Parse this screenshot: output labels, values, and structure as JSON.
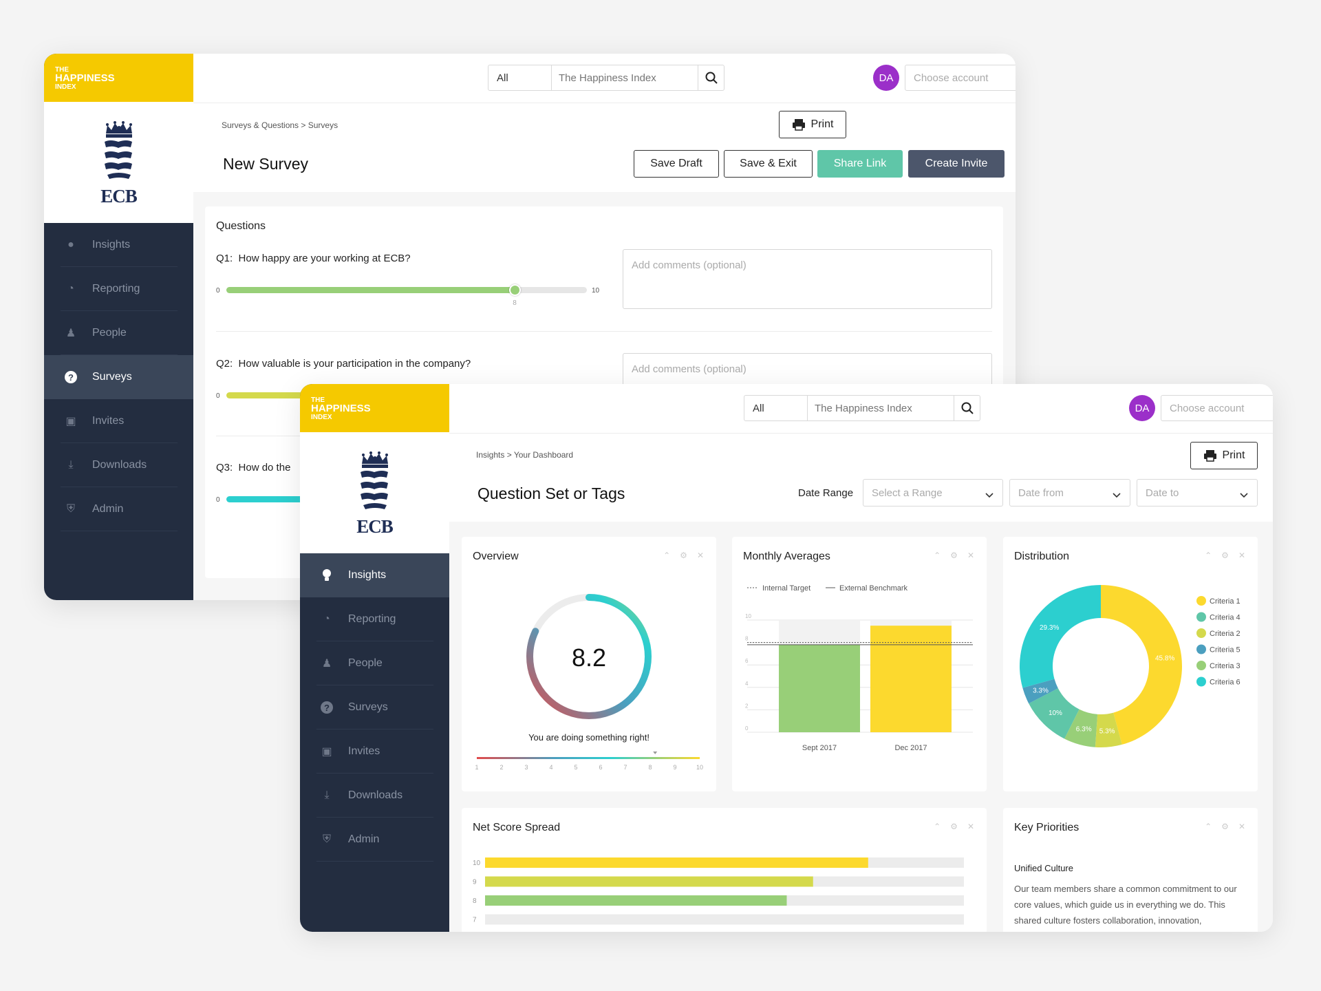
{
  "brand": {
    "line1": "THE",
    "line2": "HAPPINESS",
    "line3": "INDEX",
    "logo_text": "ECB"
  },
  "nav": {
    "items": [
      {
        "id": "insights",
        "label": "Insights",
        "icon": "lightbulb-icon"
      },
      {
        "id": "reporting",
        "label": "Reporting",
        "icon": "pie-chart-icon"
      },
      {
        "id": "people",
        "label": "People",
        "icon": "people-icon"
      },
      {
        "id": "surveys",
        "label": "Surveys",
        "icon": "question-circle-icon"
      },
      {
        "id": "invites",
        "label": "Invites",
        "icon": "inbox-icon"
      },
      {
        "id": "downloads",
        "label": "Downloads",
        "icon": "download-icon"
      },
      {
        "id": "admin",
        "label": "Admin",
        "icon": "shield-gear-icon"
      }
    ]
  },
  "header": {
    "scope": "All",
    "search_placeholder": "The Happiness Index",
    "avatar": "DA",
    "account_placeholder": "Choose account"
  },
  "survey": {
    "breadcrumb": "Surveys & Questions > Surveys",
    "title": "New Survey",
    "print_label": "Print",
    "buttons": {
      "save_draft": "Save Draft",
      "save_exit": "Save & Exit",
      "share_link": "Share Link",
      "create_invite": "Create Invite"
    },
    "questions_heading": "Questions",
    "comment_placeholder": "Add comments (optional)",
    "slider_min": "0",
    "slider_max": "10",
    "questions": [
      {
        "label": "Q1:",
        "text": "How happy are your working at ECB?",
        "value": 8,
        "value_label": "8"
      },
      {
        "label": "Q2:",
        "text": "How valuable is your participation in the company?"
      },
      {
        "label": "Q3:",
        "text": "How do the"
      }
    ]
  },
  "dashboard": {
    "breadcrumb": "Insights > Your Dashboard",
    "title": "Question Set or Tags",
    "print_label": "Print",
    "date_range_label": "Date Range",
    "select_range": "Select a Range",
    "date_from": "Date from",
    "date_to": "Date to",
    "cards": {
      "overview": "Overview",
      "monthly": "Monthly Averages",
      "distribution": "Distribution",
      "net_score": "Net Score Spread",
      "key_priorities": "Key Priorities"
    },
    "overview": {
      "score": "8.2",
      "message": "You are doing something right!",
      "scale": [
        "1",
        "2",
        "3",
        "4",
        "5",
        "6",
        "7",
        "8",
        "9",
        "10"
      ],
      "score_value": 8.2
    },
    "key_priorities": {
      "heading": "Unified Culture",
      "body": "Our team members share a common commitment to our core values, which guide us in everything we do. This shared culture fosters collaboration, innovation,"
    }
  },
  "chart_data": [
    {
      "type": "bar",
      "title": "Monthly Averages",
      "categories": [
        "Sept 2017",
        "Dec 2017"
      ],
      "series": [
        {
          "values": [
            7.8,
            9.5
          ]
        }
      ],
      "reference_lines": [
        {
          "name": "Internal Target",
          "value": 8.0
        },
        {
          "name": "External Benchmark",
          "value": 7.8
        }
      ],
      "ylim": [
        0,
        10
      ],
      "y_ticks": [
        "0",
        "2",
        "4",
        "6",
        "8",
        "10"
      ],
      "colors": [
        "#98cf78",
        "#fcd92e"
      ]
    },
    {
      "type": "pie",
      "title": "Distribution",
      "labels": [
        "Criteria 1",
        "Criteria 2",
        "Criteria 3",
        "Criteria 4",
        "Criteria 5",
        "Criteria 6"
      ],
      "values": [
        45.8,
        5.3,
        6.3,
        10,
        3.3,
        29.3
      ],
      "value_labels": [
        "45.8%",
        "5.3%",
        "6.3%",
        "10%",
        "3.3%",
        "29.3%"
      ],
      "colors": [
        "#fcd92e",
        "#d4d94c",
        "#98cf78",
        "#5fc6a8",
        "#4b9fbf",
        "#2ccfcf"
      ],
      "legend_order": [
        "Criteria 1",
        "Criteria 4",
        "Criteria 2",
        "Criteria 5",
        "Criteria 3",
        "Criteria 6"
      ]
    },
    {
      "type": "bar",
      "orientation": "horizontal",
      "title": "Net Score Spread",
      "categories": [
        "10",
        "9",
        "8",
        "7"
      ],
      "values": [
        80,
        68.5,
        63,
        0
      ],
      "xlim": [
        0,
        100
      ],
      "colors": [
        "#fcd92e",
        "#d4d94c",
        "#98cf78",
        "#98cf78"
      ]
    }
  ]
}
